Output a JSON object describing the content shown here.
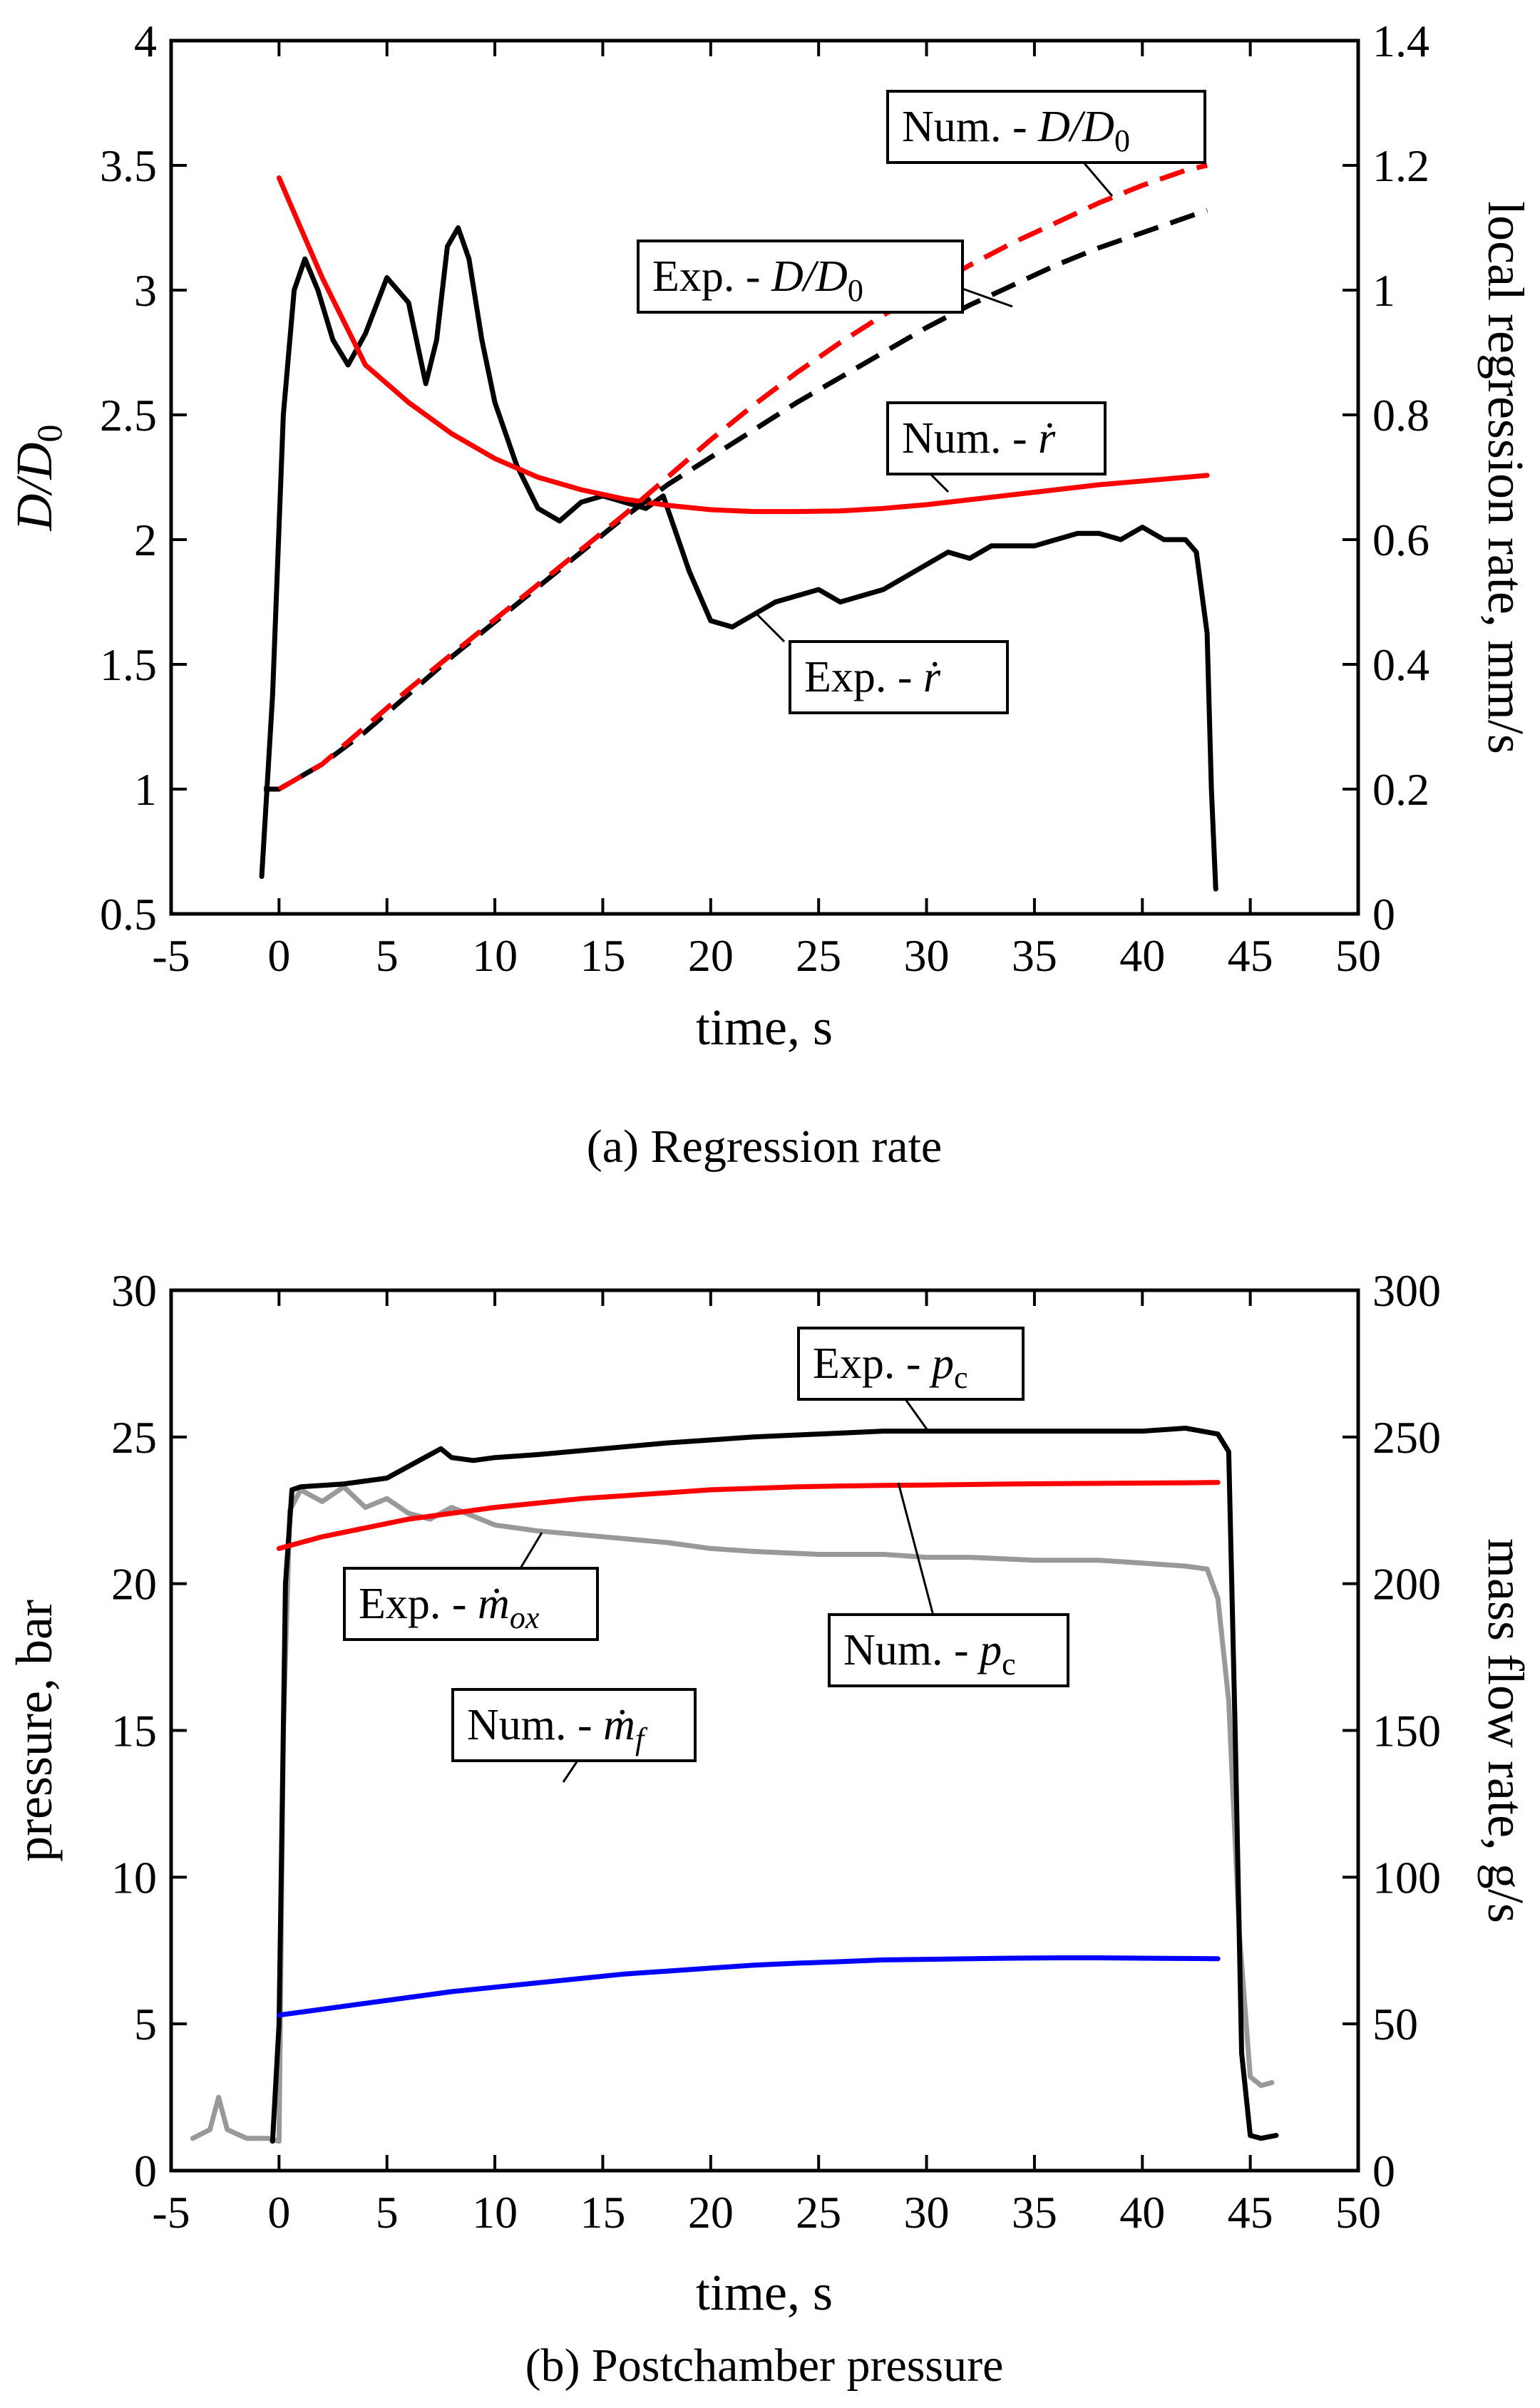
{
  "chart_data": [
    {
      "type": "line",
      "caption": "(a) Regression rate",
      "xlabel": "time, s",
      "ylabel": "D/D",
      "ylabel_sub": "0",
      "y2label": "local regression rate, mm/s",
      "xlim": [
        -5,
        50
      ],
      "ylim": [
        0.5,
        4
      ],
      "y2lim": [
        0,
        1.4
      ],
      "x_ticks": [
        "-5",
        "0",
        "5",
        "10",
        "15",
        "20",
        "25",
        "30",
        "35",
        "40",
        "45",
        "50"
      ],
      "y_ticks": [
        "0.5",
        "1",
        "1.5",
        "2",
        "2.5",
        "3",
        "3.5",
        "4"
      ],
      "y2_ticks": [
        "0",
        "0.2",
        "0.4",
        "0.6",
        "0.8",
        "1",
        "1.2",
        "1.4"
      ],
      "series": [
        {
          "name": "Exp. - r",
          "axis": "y2",
          "color": "#000000",
          "style": "solid",
          "x": [
            -0.8,
            -0.3,
            0.2,
            0.7,
            1.2,
            1.8,
            2.5,
            3.2,
            4.0,
            5.0,
            6.0,
            6.8,
            7.3,
            7.8,
            8.3,
            8.8,
            9.4,
            10.0,
            11.0,
            12.0,
            13.0,
            14.0,
            15.0,
            16.0,
            17.0,
            17.8,
            18.3,
            19.0,
            20.0,
            21.0,
            22.0,
            23.0,
            24.0,
            25.0,
            26.0,
            27.0,
            28.0,
            29.0,
            30.0,
            31.0,
            32.0,
            33.0,
            34.0,
            35.0,
            36.0,
            37.0,
            38.0,
            39.0,
            40.0,
            41.0,
            42.0,
            42.5,
            43.0,
            43.2,
            43.4
          ],
          "values": [
            0.06,
            0.35,
            0.8,
            1.0,
            1.05,
            1.0,
            0.92,
            0.88,
            0.93,
            1.02,
            0.98,
            0.85,
            0.92,
            1.07,
            1.1,
            1.05,
            0.92,
            0.82,
            0.72,
            0.65,
            0.63,
            0.66,
            0.67,
            0.66,
            0.65,
            0.67,
            0.62,
            0.55,
            0.47,
            0.46,
            0.48,
            0.5,
            0.51,
            0.52,
            0.5,
            0.51,
            0.52,
            0.54,
            0.56,
            0.58,
            0.57,
            0.59,
            0.59,
            0.59,
            0.6,
            0.61,
            0.61,
            0.6,
            0.62,
            0.6,
            0.6,
            0.58,
            0.45,
            0.2,
            0.04
          ]
        },
        {
          "name": "Num. - r",
          "axis": "y2",
          "color": "#ff0000",
          "style": "solid",
          "x": [
            0,
            1,
            2,
            3,
            4,
            6,
            8,
            10,
            12,
            14,
            16,
            18,
            20,
            22,
            24,
            26,
            28,
            30,
            32,
            34,
            36,
            38,
            40,
            42,
            43
          ],
          "values": [
            1.18,
            1.1,
            1.02,
            0.95,
            0.88,
            0.82,
            0.77,
            0.73,
            0.7,
            0.68,
            0.665,
            0.655,
            0.648,
            0.645,
            0.645,
            0.646,
            0.65,
            0.656,
            0.664,
            0.672,
            0.68,
            0.688,
            0.694,
            0.7,
            0.703
          ]
        },
        {
          "name": "Exp. - D/D0",
          "axis": "y",
          "color": "#000000",
          "style": "dashed",
          "x": [
            -0.7,
            0,
            2,
            4,
            6,
            8,
            10,
            12,
            14,
            16,
            18,
            20,
            22,
            24,
            26,
            28,
            30,
            32,
            34,
            36,
            38,
            40,
            42,
            43
          ],
          "values": [
            1.0,
            1.0,
            1.1,
            1.23,
            1.38,
            1.53,
            1.67,
            1.81,
            1.95,
            2.09,
            2.22,
            2.33,
            2.44,
            2.55,
            2.65,
            2.75,
            2.85,
            2.94,
            3.02,
            3.1,
            3.17,
            3.23,
            3.29,
            3.32
          ]
        },
        {
          "name": "Num. - D/D0",
          "axis": "y",
          "color": "#ff0000",
          "style": "dashed",
          "x": [
            0,
            2,
            4,
            6,
            8,
            10,
            12,
            14,
            16,
            18,
            20,
            22,
            24,
            26,
            28,
            30,
            32,
            34,
            36,
            38,
            40,
            42,
            43
          ],
          "values": [
            1.0,
            1.1,
            1.25,
            1.4,
            1.54,
            1.68,
            1.82,
            1.96,
            2.1,
            2.25,
            2.4,
            2.54,
            2.67,
            2.79,
            2.9,
            3.0,
            3.1,
            3.19,
            3.27,
            3.35,
            3.42,
            3.48,
            3.5
          ]
        }
      ],
      "annotations": [
        {
          "text": "Num. - ",
          "italic": "D/D",
          "sub": "0"
        },
        {
          "text": "Exp. - ",
          "italic": "D/D",
          "sub": "0"
        },
        {
          "text": "Num. - ",
          "italic": "ṙ",
          "sub": ""
        },
        {
          "text": "Exp. - ",
          "italic": "ṙ",
          "sub": ""
        }
      ]
    },
    {
      "type": "line",
      "caption": "(b) Postchamber pressure",
      "xlabel": "time, s",
      "ylabel": "pressure, bar",
      "y2label": "mass flow rate, g/s",
      "xlim": [
        -5,
        50
      ],
      "ylim": [
        0,
        30
      ],
      "y2lim": [
        0,
        300
      ],
      "x_ticks": [
        "-5",
        "0",
        "5",
        "10",
        "15",
        "20",
        "25",
        "30",
        "35",
        "40",
        "45",
        "50"
      ],
      "y_ticks": [
        "0",
        "5",
        "10",
        "15",
        "20",
        "25",
        "30"
      ],
      "y2_ticks": [
        "0",
        "50",
        "100",
        "150",
        "200",
        "250",
        "300"
      ],
      "series": [
        {
          "name": "Exp. - m_ox",
          "axis": "y2",
          "color": "#999999",
          "style": "solid",
          "x": [
            -4,
            -3.2,
            -2.8,
            -2.4,
            -1.5,
            -0.5,
            0,
            0.2,
            0.5,
            1,
            2,
            3,
            4,
            5,
            6,
            7,
            8,
            10,
            12,
            15,
            18,
            20,
            22,
            25,
            28,
            30,
            32,
            35,
            38,
            40,
            42,
            43,
            43.5,
            44,
            44.5,
            45,
            45.5,
            46
          ],
          "values": [
            11,
            14,
            25,
            14,
            11,
            11,
            10,
            150,
            225,
            232,
            228,
            233,
            226,
            229,
            224,
            222,
            226,
            220,
            218,
            216,
            214,
            212,
            211,
            210,
            210,
            209,
            209,
            208,
            208,
            207,
            206,
            205,
            195,
            160,
            80,
            32,
            29,
            30
          ]
        },
        {
          "name": "Exp. - p_c",
          "axis": "y",
          "color": "#000000",
          "style": "solid",
          "x": [
            -0.3,
            0,
            0.3,
            0.6,
            1,
            3,
            5,
            6,
            7,
            7.5,
            8,
            9,
            10,
            12,
            15,
            18,
            20,
            22,
            25,
            28,
            30,
            33,
            35,
            38,
            40,
            42,
            43.5,
            44,
            44.3,
            44.6,
            45,
            45.5,
            46.2
          ],
          "values": [
            1.0,
            5,
            20,
            23.2,
            23.3,
            23.4,
            23.6,
            24.0,
            24.4,
            24.6,
            24.3,
            24.2,
            24.3,
            24.4,
            24.6,
            24.8,
            24.9,
            25.0,
            25.1,
            25.2,
            25.2,
            25.2,
            25.2,
            25.2,
            25.2,
            25.3,
            25.1,
            24.5,
            15,
            4,
            1.2,
            1.1,
            1.2
          ]
        },
        {
          "name": "Num. - p_c",
          "axis": "y",
          "color": "#ff0000",
          "style": "solid",
          "x": [
            0,
            2,
            4,
            6,
            8,
            10,
            12,
            14,
            16,
            18,
            20,
            22,
            24,
            26,
            28,
            30,
            32,
            34,
            36,
            38,
            40,
            42,
            43.5
          ],
          "values": [
            21.2,
            21.6,
            21.9,
            22.2,
            22.4,
            22.6,
            22.75,
            22.9,
            23.0,
            23.1,
            23.2,
            23.25,
            23.3,
            23.33,
            23.35,
            23.36,
            23.38,
            23.4,
            23.41,
            23.42,
            23.43,
            23.44,
            23.45
          ]
        },
        {
          "name": "Num. - m_f",
          "axis": "y2",
          "color": "#0000ff",
          "style": "solid",
          "x": [
            0,
            2,
            4,
            6,
            8,
            10,
            12,
            14,
            16,
            18,
            20,
            22,
            24,
            26,
            28,
            30,
            32,
            34,
            36,
            38,
            40,
            42,
            43.5
          ],
          "values": [
            53,
            55,
            57,
            59,
            61,
            62.5,
            64,
            65.5,
            67,
            68,
            69,
            70,
            70.7,
            71.2,
            71.8,
            72,
            72.2,
            72.4,
            72.5,
            72.5,
            72.4,
            72.3,
            72.2
          ]
        }
      ],
      "annotations": [
        {
          "text": "Exp. - ",
          "italic": "p",
          "sub": "c"
        },
        {
          "text": "Exp. - ",
          "italic": "ṁ",
          "sub": "ox"
        },
        {
          "text": "Num. - ",
          "italic": "p",
          "sub": "c"
        },
        {
          "text": "Num. - ",
          "italic": "ṁ",
          "sub": "f"
        }
      ]
    }
  ]
}
